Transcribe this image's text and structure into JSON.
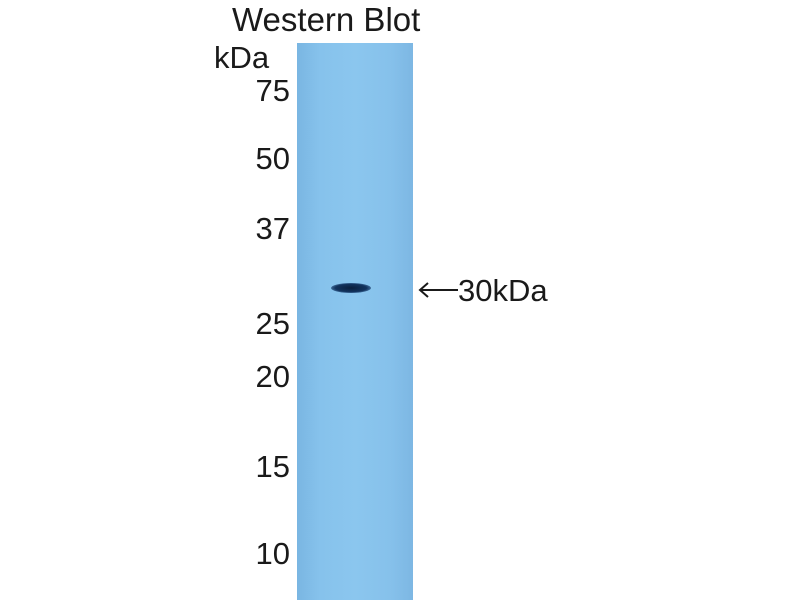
{
  "title": "Western Blot",
  "unit_label": "kDa",
  "markers": [
    "75",
    "50",
    "37",
    "25",
    "20",
    "15",
    "10"
  ],
  "band_annotation": "30kDa",
  "lane_color": "#8bc6ee",
  "band_color": "#0a1f3d"
}
